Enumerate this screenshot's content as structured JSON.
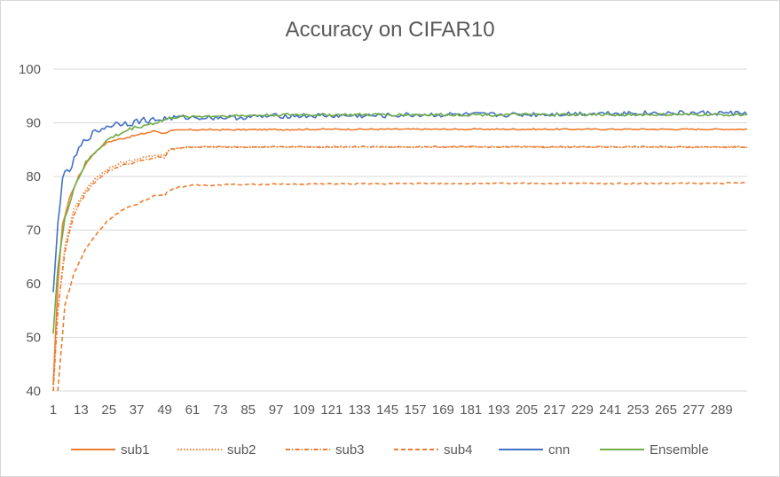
{
  "chart_data": {
    "type": "line",
    "title": "Accuracy on CIFAR10",
    "xlabel": "",
    "ylabel": "",
    "xlim": [
      1,
      300
    ],
    "ylim": [
      40,
      100
    ],
    "y_ticks": [
      "40",
      "50",
      "60",
      "70",
      "80",
      "90",
      "100"
    ],
    "x_tick_labels": [
      "1",
      "13",
      "25",
      "37",
      "49",
      "61",
      "73",
      "85",
      "97",
      "109",
      "121",
      "133",
      "145",
      "157",
      "169",
      "181",
      "193",
      "205",
      "217",
      "229",
      "241",
      "253",
      "265",
      "277",
      "289"
    ],
    "grid": true,
    "legend_position": "bottom",
    "series": [
      {
        "name": "sub1",
        "color": "#ED7D31",
        "dash": "solid",
        "x": [
          1,
          3,
          5,
          8,
          12,
          16,
          20,
          25,
          30,
          35,
          40,
          45,
          49,
          51,
          55,
          60,
          80,
          120,
          160,
          200,
          240,
          280,
          300
        ],
        "values": [
          41,
          60,
          71,
          76,
          80,
          83,
          85,
          86.5,
          87,
          87.5,
          88,
          88.5,
          88,
          88.5,
          88.6,
          88.7,
          88.7,
          88.8,
          88.8,
          88.8,
          88.8,
          88.8,
          88.8
        ]
      },
      {
        "name": "sub2",
        "color": "#ED7D31",
        "dash": "dotted",
        "x": [
          1,
          3,
          6,
          10,
          15,
          20,
          25,
          30,
          35,
          40,
          45,
          49,
          51,
          55,
          60,
          80,
          120,
          160,
          200,
          240,
          280,
          300
        ],
        "values": [
          40,
          55,
          67,
          74,
          77.5,
          80,
          81.5,
          82.5,
          83,
          83.5,
          84,
          84,
          85,
          85.3,
          85.5,
          85.5,
          85.5,
          85.5,
          85.5,
          85.5,
          85.5,
          85.5
        ]
      },
      {
        "name": "sub3",
        "color": "#ED7D31",
        "dash": "dashdot",
        "x": [
          1,
          3,
          6,
          10,
          15,
          20,
          25,
          30,
          35,
          40,
          45,
          49,
          51,
          55,
          60,
          80,
          120,
          160,
          200,
          240,
          280,
          300
        ],
        "values": [
          40,
          55,
          66,
          73,
          77,
          79.5,
          81,
          82,
          82.5,
          83,
          83.5,
          83.5,
          85,
          85.3,
          85.5,
          85.5,
          85.5,
          85.5,
          85.5,
          85.5,
          85.5,
          85.5
        ]
      },
      {
        "name": "sub4",
        "color": "#ED7D31",
        "dash": "dashed",
        "x": [
          3,
          6,
          10,
          15,
          20,
          25,
          30,
          35,
          40,
          45,
          49,
          51,
          55,
          60,
          80,
          120,
          160,
          200,
          240,
          280,
          300
        ],
        "values": [
          40,
          56,
          62,
          66.5,
          69.5,
          72,
          73.5,
          74.5,
          75.5,
          76.5,
          76.5,
          77.5,
          78,
          78.3,
          78.5,
          78.6,
          78.7,
          78.7,
          78.7,
          78.7,
          78.8
        ]
      },
      {
        "name": "cnn",
        "color": "#4472C4",
        "dash": "solid",
        "x": [
          1,
          3,
          5,
          8,
          12,
          15,
          20,
          25,
          30,
          35,
          40,
          45,
          50,
          55,
          60,
          80,
          100,
          120,
          140,
          160,
          200,
          240,
          280,
          300
        ],
        "values": [
          58,
          71,
          80,
          81,
          85,
          87,
          88.5,
          89.5,
          90,
          90,
          90.5,
          90.5,
          90.8,
          91,
          91,
          91,
          91.3,
          91.3,
          91.3,
          91.5,
          91.5,
          91.8,
          91.8,
          91.8
        ]
      },
      {
        "name": "Ensemble",
        "color": "#70AD47",
        "dash": "solid",
        "x": [
          1,
          3,
          6,
          10,
          15,
          20,
          25,
          30,
          35,
          40,
          45,
          49,
          52,
          55,
          60,
          80,
          100,
          120,
          160,
          200,
          240,
          280,
          300
        ],
        "values": [
          51,
          63,
          72,
          78,
          82.5,
          85,
          87,
          88,
          89,
          89.5,
          90,
          90.5,
          91,
          91,
          91.2,
          91.3,
          91.5,
          91.5,
          91.5,
          91.5,
          91.5,
          91.5,
          91.5
        ]
      }
    ]
  }
}
